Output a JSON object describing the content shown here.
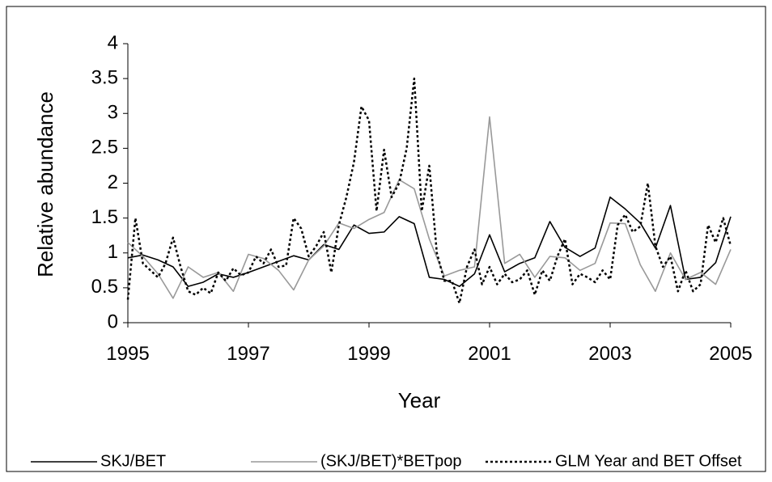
{
  "chart_data": {
    "type": "line",
    "x_label": "Year",
    "y_label": "Relative abundance",
    "xlim": [
      1995,
      2005
    ],
    "xticks": [
      1995,
      1997,
      1999,
      2001,
      2003,
      2005
    ],
    "ylim": [
      0,
      4
    ],
    "yticks": [
      0,
      {
        "value": 0.5,
        "label": "0.5"
      },
      1,
      {
        "value": 1.5,
        "label": "1.5"
      },
      2,
      {
        "value": 2.5,
        "label": "2.5"
      },
      3,
      {
        "value": 3.5,
        "label": "3.5"
      },
      4
    ],
    "grid": false,
    "legend": "bottom",
    "series": [
      {
        "name": "SKJ/BET",
        "color": "#000000",
        "dash": "solid",
        "x": [
          1995,
          1995.25,
          1995.5,
          1995.75,
          1996,
          1996.25,
          1996.5,
          1996.75,
          1997,
          1997.25,
          1997.5,
          1997.75,
          1998,
          1998.25,
          1998.5,
          1998.75,
          1999,
          1999.25,
          1999.5,
          1999.75,
          2000,
          2000.25,
          2000.5,
          2000.75,
          2001,
          2001.25,
          2001.5,
          2001.75,
          2002,
          2002.25,
          2002.5,
          2002.75,
          2003,
          2003.25,
          2003.5,
          2003.75,
          2004,
          2004.25,
          2004.5,
          2004.75,
          2005
        ],
        "values": [
          0.93,
          0.97,
          0.9,
          0.8,
          0.52,
          0.58,
          0.7,
          0.65,
          0.72,
          0.8,
          0.88,
          0.96,
          0.9,
          1.12,
          1.05,
          1.4,
          1.28,
          1.3,
          1.52,
          1.42,
          0.65,
          0.62,
          0.52,
          0.7,
          1.26,
          0.73,
          0.85,
          0.93,
          1.45,
          1.08,
          0.95,
          1.07,
          1.8,
          1.63,
          1.43,
          1.07,
          1.68,
          0.62,
          0.65,
          0.86,
          1.52
        ]
      },
      {
        "name": "(SKJ/BET)*BETpop",
        "color": "#999999",
        "dash": "solid",
        "x": [
          1995,
          1995.25,
          1995.5,
          1995.75,
          1996,
          1996.25,
          1996.5,
          1996.75,
          1997,
          1997.25,
          1997.5,
          1997.75,
          1998,
          1998.25,
          1998.5,
          1998.75,
          1999,
          1999.25,
          1999.5,
          1999.75,
          2000,
          2000.25,
          2000.5,
          2000.75,
          2001,
          2001.25,
          2001.5,
          2001.75,
          2002,
          2002.25,
          2002.5,
          2002.75,
          2003,
          2003.25,
          2003.5,
          2003.75,
          2004,
          2004.25,
          2004.5,
          2004.75,
          2005
        ],
        "values": [
          1.15,
          0.95,
          0.7,
          0.35,
          0.8,
          0.65,
          0.72,
          0.45,
          0.98,
          0.92,
          0.75,
          0.47,
          0.9,
          1.1,
          1.43,
          1.35,
          1.48,
          1.58,
          2.05,
          1.92,
          1.2,
          0.67,
          0.75,
          0.8,
          2.95,
          0.85,
          0.98,
          0.65,
          0.95,
          0.93,
          0.75,
          0.85,
          1.43,
          1.42,
          0.83,
          0.45,
          1.0,
          0.62,
          0.72,
          0.55,
          1.05
        ]
      },
      {
        "name": "GLM Year and BET Offset",
        "color": "#000000",
        "dash": "dotted",
        "x": [
          1995,
          1995.125,
          1995.25,
          1995.375,
          1995.5,
          1995.625,
          1995.75,
          1995.875,
          1996,
          1996.125,
          1996.25,
          1996.375,
          1996.5,
          1996.625,
          1996.75,
          1996.875,
          1997,
          1997.125,
          1997.25,
          1997.375,
          1997.5,
          1997.625,
          1997.75,
          1997.875,
          1998,
          1998.125,
          1998.25,
          1998.375,
          1998.5,
          1998.625,
          1998.75,
          1998.875,
          1999,
          1999.125,
          1999.25,
          1999.375,
          1999.5,
          1999.625,
          1999.75,
          1999.875,
          2000,
          2000.125,
          2000.25,
          2000.375,
          2000.5,
          2000.625,
          2000.75,
          2000.875,
          2001,
          2001.125,
          2001.25,
          2001.375,
          2001.5,
          2001.625,
          2001.75,
          2001.875,
          2002,
          2002.125,
          2002.25,
          2002.375,
          2002.5,
          2002.625,
          2002.75,
          2002.875,
          2003,
          2003.125,
          2003.25,
          2003.375,
          2003.5,
          2003.625,
          2003.75,
          2003.875,
          2004,
          2004.125,
          2004.25,
          2004.375,
          2004.5,
          2004.625,
          2004.75,
          2004.875,
          2005
        ],
        "values": [
          0.33,
          1.5,
          0.85,
          0.75,
          0.65,
          0.85,
          1.22,
          0.8,
          0.45,
          0.4,
          0.5,
          0.42,
          0.72,
          0.6,
          0.78,
          0.68,
          0.72,
          0.95,
          0.85,
          1.05,
          0.8,
          0.82,
          1.5,
          1.35,
          0.95,
          1.1,
          1.3,
          0.72,
          1.4,
          1.8,
          2.3,
          3.1,
          2.9,
          1.6,
          2.48,
          1.8,
          2.0,
          2.5,
          3.5,
          1.6,
          2.25,
          1.0,
          0.6,
          0.6,
          0.28,
          0.8,
          1.05,
          0.55,
          0.8,
          0.55,
          0.7,
          0.58,
          0.62,
          0.75,
          0.4,
          0.75,
          0.6,
          0.95,
          1.2,
          0.55,
          0.7,
          0.65,
          0.58,
          0.75,
          0.62,
          1.4,
          1.55,
          1.3,
          1.38,
          2.0,
          1.1,
          0.8,
          0.95,
          0.45,
          0.75,
          0.45,
          0.55,
          1.4,
          1.15,
          1.5,
          1.1
        ]
      }
    ]
  }
}
